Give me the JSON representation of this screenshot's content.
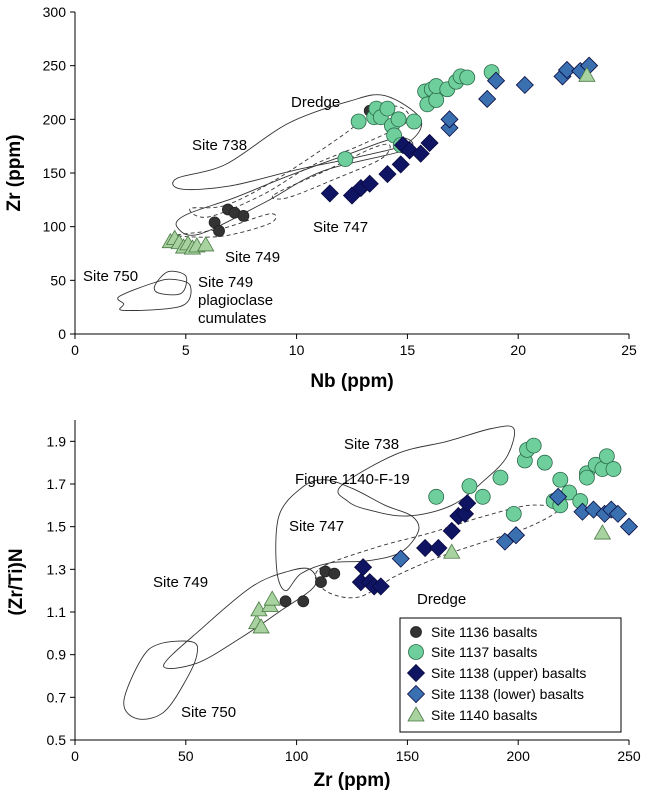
{
  "figure_note": "Figure 1140-F-19",
  "colors": {
    "site_1136": "#333333",
    "site_1137": "#6fcf9c",
    "site_1138_upper": "#0f1463",
    "site_1138_lower": "#3a6fb0",
    "site_1140": "#a8d29f"
  },
  "markers": {
    "site_1136": "circle-small",
    "site_1137": "circle-large",
    "site_1138_upper": "diamond",
    "site_1138_lower": "diamond",
    "site_1140": "triangle"
  },
  "chart_data": [
    {
      "type": "scatter",
      "xlabel": "Nb (ppm)",
      "ylabel": "Zr (ppm)",
      "xlim": [
        0,
        25
      ],
      "ylim": [
        0,
        300
      ],
      "xticks": [
        0,
        5,
        10,
        15,
        20,
        25
      ],
      "yticks": [
        0,
        50,
        100,
        150,
        200,
        250,
        300
      ],
      "legend": "none",
      "grid": false,
      "region_labels": [
        "Dredge",
        "Site 738",
        "Site 747",
        "Site 749",
        "Site 750",
        "Site 749",
        "plagioclase",
        "cumulates"
      ],
      "regions": [
        {
          "style": "solid",
          "points": [
            [
              12.4,
              217
            ],
            [
              14,
              222
            ],
            [
              15.6,
              200
            ],
            [
              15,
              178
            ],
            [
              13,
              166
            ],
            [
              10,
              153
            ],
            [
              7,
              138
            ],
            [
              4.8,
              135
            ],
            [
              4.6,
              145
            ],
            [
              6.8,
              158
            ],
            [
              9.6,
              196
            ]
          ]
        },
        {
          "style": "dashed",
          "points": [
            [
              6.8,
              120
            ],
            [
              9,
              143
            ],
            [
              12,
              184
            ],
            [
              13.4,
              206
            ],
            [
              14.6,
              212
            ],
            [
              15,
              198
            ],
            [
              13,
              177
            ],
            [
              10.6,
              156
            ],
            [
              8.4,
              129
            ],
            [
              6,
              109
            ],
            [
              5.2,
              117
            ]
          ]
        },
        {
          "style": "solid",
          "points": [
            [
              5,
              111
            ],
            [
              7.2,
              127
            ],
            [
              9.6,
              147
            ],
            [
              12.4,
              168
            ],
            [
              14.6,
              183
            ],
            [
              15,
              172
            ],
            [
              11.2,
              152
            ],
            [
              8.6,
              123
            ],
            [
              5.6,
              93
            ],
            [
              4.6,
              100
            ]
          ]
        },
        {
          "style": "dashed",
          "points": [
            [
              9,
              130
            ],
            [
              11.4,
              153
            ],
            [
              13.4,
              173
            ],
            [
              14.2,
              176
            ],
            [
              13.8,
              163
            ],
            [
              11.8,
              145
            ],
            [
              9.6,
              127
            ]
          ]
        },
        {
          "style": "dashed",
          "points": [
            [
              4.6,
              92
            ],
            [
              6.6,
              98
            ],
            [
              8.8,
              112
            ],
            [
              8.8,
              103
            ],
            [
              6.6,
              91
            ]
          ]
        },
        {
          "style": "solid",
          "points": [
            [
              2,
              35
            ],
            [
              3.6,
              48
            ],
            [
              4.4,
              51
            ],
            [
              5.2,
              45
            ],
            [
              4.8,
              26
            ],
            [
              2.2,
              22
            ],
            [
              2.2,
              28
            ]
          ]
        },
        {
          "style": "solid",
          "points": [
            [
              3.6,
              45
            ],
            [
              4.2,
              58
            ],
            [
              5,
              54
            ],
            [
              4.8,
              38
            ],
            [
              3.8,
              38
            ]
          ]
        }
      ],
      "series": [
        {
          "name": "Site 1136 basalts",
          "points": [
            [
              6.3,
              104
            ],
            [
              6.5,
              96
            ],
            [
              6.9,
              116
            ],
            [
              7.2,
              113
            ],
            [
              7.6,
              110
            ],
            [
              13.3,
              208
            ]
          ]
        },
        {
          "name": "Site 1137 basalts",
          "points": [
            [
              12.2,
              163
            ],
            [
              12.8,
              198
            ],
            [
              13.5,
              202
            ],
            [
              13.6,
              210
            ],
            [
              13.8,
              202
            ],
            [
              14.1,
              210
            ],
            [
              14.3,
              194
            ],
            [
              14.4,
              185
            ],
            [
              14.6,
              200
            ],
            [
              14.7,
              176
            ],
            [
              15.3,
              198
            ],
            [
              15.8,
              226
            ],
            [
              15.9,
              214
            ],
            [
              16.1,
              228
            ],
            [
              16.3,
              218
            ],
            [
              16.3,
              231
            ],
            [
              16.8,
              228
            ],
            [
              17.2,
              235
            ],
            [
              17.4,
              240
            ],
            [
              17.7,
              239
            ],
            [
              18.8,
              244
            ]
          ]
        },
        {
          "name": "Site 1138 (upper) basalts",
          "points": [
            [
              11.5,
              131
            ],
            [
              12.5,
              129
            ],
            [
              12.9,
              136
            ],
            [
              13.3,
              140
            ],
            [
              14.1,
              149
            ],
            [
              14.7,
              158
            ],
            [
              14.8,
              176
            ],
            [
              15.1,
              171
            ],
            [
              15.6,
              168
            ],
            [
              16.0,
              178
            ]
          ]
        },
        {
          "name": "Site 1138 (lower) basalts",
          "points": [
            [
              16.9,
              192
            ],
            [
              16.9,
              200
            ],
            [
              18.6,
              219
            ],
            [
              19.0,
              236
            ],
            [
              20.3,
              232
            ],
            [
              22.0,
              240
            ],
            [
              22.2,
              246
            ],
            [
              22.8,
              245
            ],
            [
              23.2,
              250
            ]
          ]
        },
        {
          "name": "Site 1140 basalts",
          "points": [
            [
              4.3,
              86
            ],
            [
              4.5,
              89
            ],
            [
              4.7,
              85
            ],
            [
              4.9,
              81
            ],
            [
              5.1,
              84
            ],
            [
              5.3,
              80
            ],
            [
              5.5,
              82
            ],
            [
              5.9,
              83
            ],
            [
              23.1,
              241
            ]
          ]
        }
      ]
    },
    {
      "type": "scatter",
      "xlabel": "Zr (ppm)",
      "ylabel": "(Zr/Ti)N",
      "xlim": [
        0,
        250
      ],
      "ylim": [
        0.5,
        2.0
      ],
      "xticks": [
        0,
        50,
        100,
        150,
        200,
        250
      ],
      "yticks": [
        0.5,
        0.7,
        0.9,
        1.1,
        1.3,
        1.5,
        1.7,
        1.9
      ],
      "legend": "bottom-right",
      "grid": false,
      "region_labels": [
        "Site 738",
        "Site 747",
        "Dredge",
        "Site 749",
        "Site 750"
      ],
      "regions": [
        {
          "style": "solid",
          "points": [
            [
              120,
              1.69
            ],
            [
              145,
              1.84
            ],
            [
              168,
              1.9
            ],
            [
              188,
              1.96
            ],
            [
              198,
              1.96
            ],
            [
              195,
              1.83
            ],
            [
              185,
              1.72
            ],
            [
              170,
              1.6
            ],
            [
              150,
              1.55
            ],
            [
              132,
              1.58
            ],
            [
              123,
              1.62
            ]
          ]
        },
        {
          "style": "solid",
          "points": [
            [
              92,
              1.55
            ],
            [
              102,
              1.68
            ],
            [
              112,
              1.72
            ],
            [
              125,
              1.68
            ],
            [
              140,
              1.6
            ],
            [
              152,
              1.55
            ],
            [
              155,
              1.48
            ],
            [
              147,
              1.38
            ],
            [
              132,
              1.34
            ],
            [
              115,
              1.33
            ],
            [
              102,
              1.28
            ],
            [
              95,
              1.2
            ],
            [
              91,
              1.3
            ]
          ]
        },
        {
          "style": "dashed",
          "points": [
            [
              110,
              1.3
            ],
            [
              135,
              1.4
            ],
            [
              160,
              1.47
            ],
            [
              185,
              1.55
            ],
            [
              205,
              1.6
            ],
            [
              218,
              1.58
            ],
            [
              205,
              1.5
            ],
            [
              185,
              1.43
            ],
            [
              165,
              1.36
            ],
            [
              145,
              1.27
            ],
            [
              128,
              1.17
            ],
            [
              113,
              1.2
            ]
          ]
        },
        {
          "style": "solid",
          "points": [
            [
              40,
              0.85
            ],
            [
              58,
              1.03
            ],
            [
              80,
              1.22
            ],
            [
              96,
              1.29
            ],
            [
              106,
              1.3
            ],
            [
              108,
              1.22
            ],
            [
              92,
              1.1
            ],
            [
              75,
              0.98
            ],
            [
              55,
              0.86
            ]
          ]
        },
        {
          "style": "solid",
          "points": [
            [
              22,
              0.68
            ],
            [
              30,
              0.88
            ],
            [
              38,
              0.95
            ],
            [
              53,
              0.96
            ],
            [
              55,
              0.9
            ],
            [
              50,
              0.78
            ],
            [
              40,
              0.63
            ],
            [
              28,
              0.6
            ]
          ]
        }
      ],
      "series": [
        {
          "name": "Site 1136 basalts",
          "points": [
            [
              95,
              1.15
            ],
            [
              103,
              1.15
            ],
            [
              111,
              1.24
            ],
            [
              113,
              1.29
            ],
            [
              117,
              1.28
            ]
          ]
        },
        {
          "name": "Site 1137 basalts",
          "points": [
            [
              163,
              1.64
            ],
            [
              178,
              1.69
            ],
            [
              184,
              1.64
            ],
            [
              192,
              1.73
            ],
            [
              198,
              1.56
            ],
            [
              203,
              1.81
            ],
            [
              204,
              1.86
            ],
            [
              207,
              1.88
            ],
            [
              212,
              1.8
            ],
            [
              216,
              1.62
            ],
            [
              219,
              1.72
            ],
            [
              219,
              1.6
            ],
            [
              223,
              1.66
            ],
            [
              228,
              1.62
            ],
            [
              231,
              1.75
            ],
            [
              231,
              1.73
            ],
            [
              235,
              1.79
            ],
            [
              238,
              1.77
            ],
            [
              240,
              1.83
            ],
            [
              243,
              1.77
            ]
          ]
        },
        {
          "name": "Site 1138 (upper) basalts",
          "points": [
            [
              129,
              1.24
            ],
            [
              130,
              1.31
            ],
            [
              133,
              1.24
            ],
            [
              135,
              1.22
            ],
            [
              138,
              1.22
            ],
            [
              158,
              1.4
            ],
            [
              164,
              1.4
            ],
            [
              170,
              1.48
            ],
            [
              173,
              1.55
            ],
            [
              176,
              1.56
            ],
            [
              177,
              1.61
            ]
          ]
        },
        {
          "name": "Site 1138 (lower) basalts",
          "points": [
            [
              147,
              1.35
            ],
            [
              194,
              1.43
            ],
            [
              199,
              1.46
            ],
            [
              218,
              1.64
            ],
            [
              229,
              1.57
            ],
            [
              234,
              1.58
            ],
            [
              239,
              1.56
            ],
            [
              242,
              1.58
            ],
            [
              245,
              1.56
            ],
            [
              250,
              1.5
            ]
          ]
        },
        {
          "name": "Site 1140 basalts",
          "points": [
            [
              82,
              1.05
            ],
            [
              83,
              1.11
            ],
            [
              84,
              1.03
            ],
            [
              88,
              1.13
            ],
            [
              89,
              1.16
            ],
            [
              170,
              1.38
            ],
            [
              238,
              1.47
            ]
          ]
        }
      ]
    }
  ]
}
